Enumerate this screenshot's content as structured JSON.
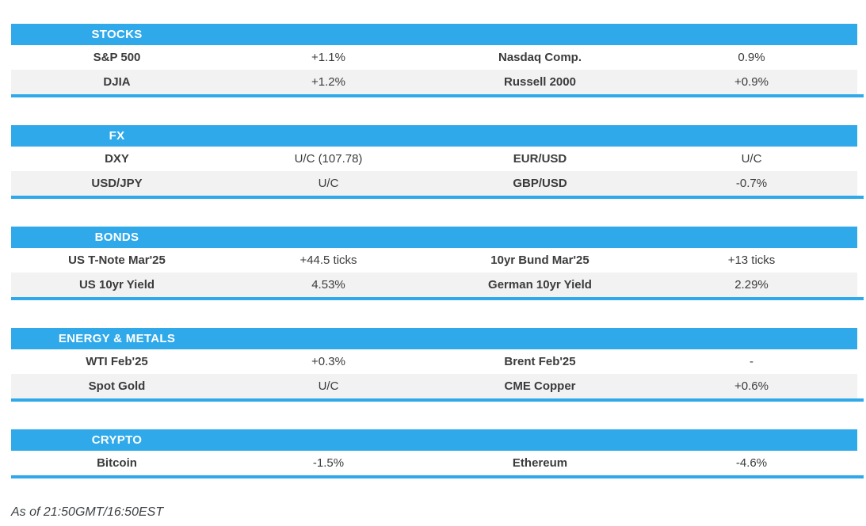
{
  "colors": {
    "accent": "#2FA9EA",
    "row_alt": "#F2F2F2",
    "text": "#3B3B3B"
  },
  "sections": [
    {
      "title": "STOCKS",
      "rows": [
        [
          {
            "label": "S&P 500",
            "value": "+1.1%"
          },
          {
            "label": "Nasdaq Comp.",
            "value": "0.9%"
          }
        ],
        [
          {
            "label": "DJIA",
            "value": "+1.2%"
          },
          {
            "label": "Russell 2000",
            "value": "+0.9%"
          }
        ]
      ]
    },
    {
      "title": "FX",
      "rows": [
        [
          {
            "label": "DXY",
            "value": "U/C (107.78)"
          },
          {
            "label": "EUR/USD",
            "value": "U/C"
          }
        ],
        [
          {
            "label": "USD/JPY",
            "value": "U/C"
          },
          {
            "label": "GBP/USD",
            "value": "-0.7%"
          }
        ]
      ]
    },
    {
      "title": "BONDS",
      "rows": [
        [
          {
            "label": "US T-Note Mar'25",
            "value": "+44.5 ticks"
          },
          {
            "label": "10yr Bund Mar'25",
            "value": "+13 ticks"
          }
        ],
        [
          {
            "label": "US 10yr Yield",
            "value": "4.53%"
          },
          {
            "label": "German 10yr Yield",
            "value": "2.29%"
          }
        ]
      ]
    },
    {
      "title": "ENERGY & METALS",
      "rows": [
        [
          {
            "label": "WTI Feb'25",
            "value": "+0.3%"
          },
          {
            "label": "Brent Feb'25",
            "value": "-"
          }
        ],
        [
          {
            "label": "Spot Gold",
            "value": "U/C"
          },
          {
            "label": "CME Copper",
            "value": "+0.6%"
          }
        ]
      ]
    },
    {
      "title": "CRYPTO",
      "rows": [
        [
          {
            "label": "Bitcoin",
            "value": "-1.5%"
          },
          {
            "label": "Ethereum",
            "value": "-4.6%"
          }
        ]
      ]
    }
  ],
  "footer": {
    "as_of": "As of 21:50GMT/16:50EST"
  }
}
